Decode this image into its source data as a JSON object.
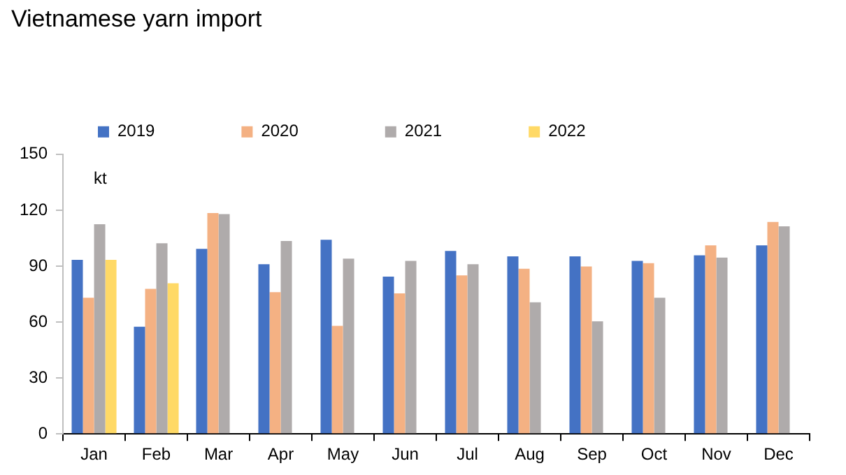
{
  "chart_data": {
    "type": "bar",
    "title": "Vietnamese yarn import",
    "ylabel": "kt",
    "categories": [
      "Jan",
      "Feb",
      "Mar",
      "Apr",
      "May",
      "Jun",
      "Jul",
      "Aug",
      "Sep",
      "Oct",
      "Nov",
      "Dec"
    ],
    "series": [
      {
        "name": "2019",
        "color": "#4472c4",
        "values": [
          93.4,
          57.5,
          99.3,
          91,
          104.1,
          84.4,
          98.1,
          95.2,
          95.2,
          92.8,
          95.8,
          101.1
        ]
      },
      {
        "name": "2020",
        "color": "#f4b183",
        "values": [
          73,
          77.8,
          118.5,
          76,
          58,
          75.4,
          85,
          88.6,
          89.8,
          91.6,
          101.1,
          113.7
        ]
      },
      {
        "name": "2021",
        "color": "#afabab",
        "values": [
          112.5,
          102.3,
          117.9,
          103.5,
          94,
          92.8,
          91,
          70.6,
          60.4,
          73,
          94.6,
          111.3
        ]
      },
      {
        "name": "2022",
        "color": "#ffd966",
        "values": [
          93.4,
          80.8,
          null,
          null,
          null,
          null,
          null,
          null,
          null,
          null,
          null,
          null
        ]
      }
    ],
    "ylim": [
      0,
      150
    ],
    "yticks": [
      0,
      30,
      60,
      90,
      120,
      150
    ],
    "grid": false,
    "legend": "top"
  }
}
